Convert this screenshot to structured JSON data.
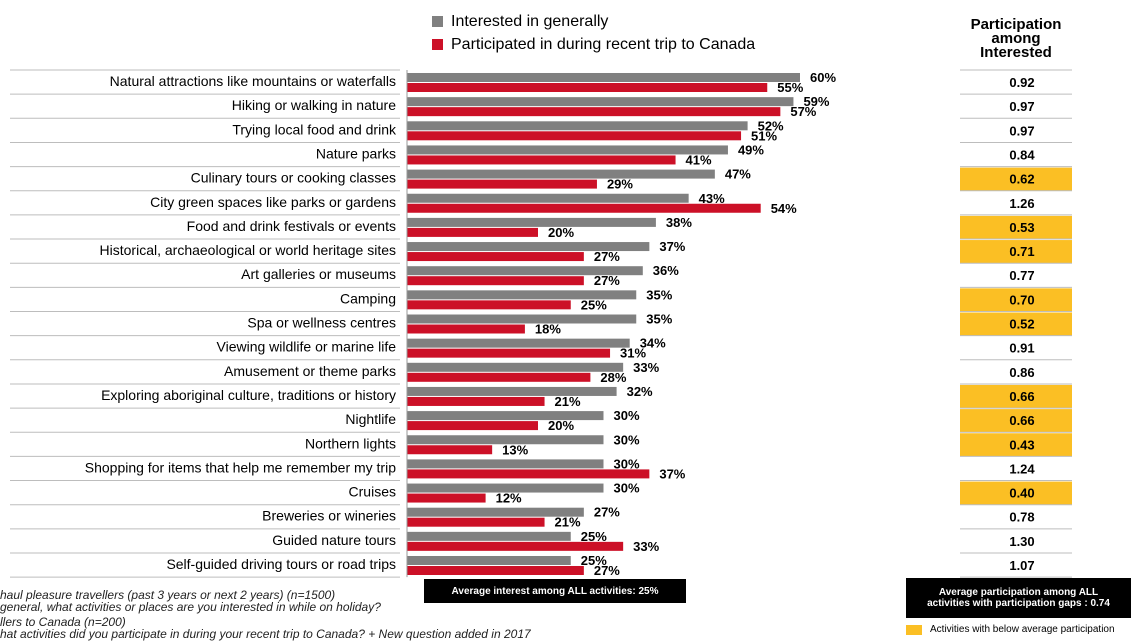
{
  "legend": {
    "interest_label": "Interested in generally",
    "participated_label": "Participated in during recent trip to Canada"
  },
  "ratio_header": [
    "Participation",
    "among",
    "Interested"
  ],
  "footnotes": {
    "line1": "haul pleasure travellers (past 3 years or next 2 years) (n=1500)",
    "line2": "general, what activities or places are you interested in while on holiday?",
    "line3": "llers to Canada (n=200)",
    "line4": "hat activities did you participate in during your recent trip to Canada?    + New question added in 2017"
  },
  "avg_interest_text": "Average interest among ALL activities: 25%",
  "avg_participation_text": [
    "Average participation among ALL",
    "activities with participation gaps : 0.74"
  ],
  "highlight_key_text": "Activities with below average participation",
  "colors": {
    "interest": "#808080",
    "participated": "#cc1027",
    "highlight": "#fbbf24"
  },
  "chart_data": {
    "type": "bar",
    "orientation": "horizontal",
    "categories": [
      "Natural attractions like mountains or waterfalls",
      "Hiking or walking in nature",
      "Trying local food and drink",
      "Nature parks",
      "Culinary tours or cooking classes",
      "City green spaces like parks or gardens",
      "Food and drink festivals or events",
      "Historical, archaeological or world heritage sites",
      "Art galleries or museums",
      "Camping",
      "Spa or wellness centres",
      "Viewing wildlife or marine life",
      "Amusement or theme parks",
      "Exploring aboriginal culture, traditions or history",
      "Nightlife",
      "Northern lights",
      "Shopping for items that help me remember my trip",
      "Cruises",
      "Breweries or wineries",
      "Guided nature tours",
      "Self-guided driving tours or road trips"
    ],
    "series": [
      {
        "name": "Interested in generally",
        "values": [
          60,
          59,
          52,
          49,
          47,
          43,
          38,
          37,
          36,
          35,
          35,
          34,
          33,
          32,
          30,
          30,
          30,
          30,
          27,
          25,
          25
        ]
      },
      {
        "name": "Participated in during recent trip to Canada",
        "values": [
          55,
          57,
          51,
          41,
          29,
          54,
          20,
          27,
          27,
          25,
          18,
          31,
          28,
          21,
          20,
          13,
          37,
          12,
          21,
          33,
          27
        ]
      }
    ],
    "participation_ratio": [
      0.92,
      0.97,
      0.97,
      0.84,
      0.62,
      1.26,
      0.53,
      0.71,
      0.77,
      0.7,
      0.52,
      0.91,
      0.86,
      0.66,
      0.66,
      0.43,
      1.24,
      0.4,
      0.78,
      1.3,
      1.07
    ],
    "ratio_labels": [
      "0.92",
      "0.97",
      "0.97",
      "0.84",
      "0.62",
      "1.26",
      "0.53",
      "0.71",
      "0.77",
      "0.70",
      "0.52",
      "0.91",
      "0.86",
      "0.66",
      "0.66",
      "0.43",
      "1.24",
      "0.40",
      "0.78",
      "1.30",
      "1.07"
    ],
    "below_average": [
      false,
      false,
      false,
      false,
      true,
      false,
      true,
      true,
      false,
      true,
      true,
      false,
      false,
      true,
      true,
      true,
      false,
      true,
      false,
      false,
      false
    ],
    "value_suffix": "%"
  }
}
